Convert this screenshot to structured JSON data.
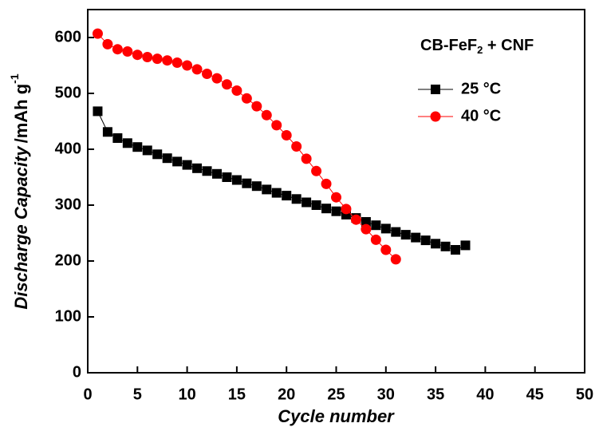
{
  "chart_data": {
    "type": "line",
    "xlabel": "Cycle number",
    "ylabel": {
      "text": "Discharge Capacity",
      "unit": "/mAh g",
      "sup": "-1"
    },
    "annotation": {
      "main": "CB-FeF",
      "sub": "2",
      "rest": " + CNF"
    },
    "x": [
      1,
      2,
      3,
      4,
      5,
      6,
      7,
      8,
      9,
      10,
      11,
      12,
      13,
      14,
      15,
      16,
      17,
      18,
      19,
      20,
      21,
      22,
      23,
      24,
      25,
      26,
      27,
      28,
      29,
      30,
      31,
      32,
      33,
      34,
      35,
      36,
      37,
      38
    ],
    "series": [
      {
        "name": "25 °C",
        "color": "#000000",
        "marker": "square",
        "values": [
          468,
          431,
          420,
          411,
          404,
          398,
          391,
          384,
          378,
          372,
          366,
          361,
          356,
          350,
          345,
          339,
          334,
          328,
          322,
          317,
          311,
          305,
          300,
          294,
          289,
          283,
          277,
          270,
          264,
          258,
          252,
          247,
          242,
          237,
          231,
          226,
          220,
          228
        ]
      },
      {
        "name": "40 °C",
        "color": "#ff0000",
        "marker": "circle",
        "values": [
          607,
          588,
          579,
          575,
          569,
          565,
          562,
          559,
          555,
          550,
          543,
          535,
          527,
          516,
          505,
          491,
          477,
          461,
          443,
          425,
          405,
          383,
          361,
          338,
          314,
          293,
          274,
          257,
          238,
          220,
          203,
          null,
          null,
          null,
          null,
          null,
          null,
          null
        ]
      }
    ],
    "xlim": [
      0,
      50
    ],
    "xticks": [
      0,
      5,
      10,
      15,
      20,
      25,
      30,
      35,
      40,
      45,
      50
    ],
    "ylim": [
      0,
      650
    ],
    "yticks": [
      0,
      100,
      200,
      300,
      400,
      500,
      600
    ],
    "legend": "upper right",
    "grid": false
  }
}
